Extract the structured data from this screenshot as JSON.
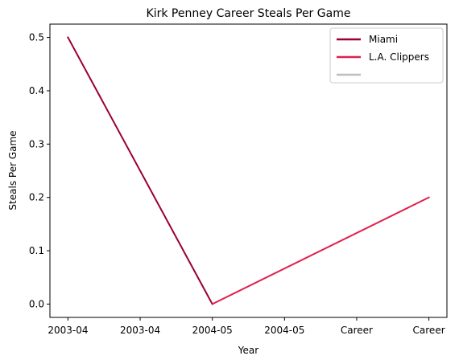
{
  "chart_data": {
    "type": "line",
    "title": "Kirk Penney Career Steals Per Game",
    "xlabel": "Year",
    "ylabel": "Steals Per Game",
    "categories": [
      "2003-04",
      "2003-04",
      "2004-05",
      "2004-05",
      "Career",
      "Career"
    ],
    "ylim": [
      -0.025,
      0.525
    ],
    "y_ticks": [
      "0.0",
      "0.1",
      "0.2",
      "0.3",
      "0.4",
      "0.5"
    ],
    "grid": false,
    "legend_position": "top-right",
    "series": [
      {
        "name": "Miami",
        "color": "#990033",
        "points": [
          [
            0,
            0.5
          ],
          [
            2,
            0.0
          ]
        ]
      },
      {
        "name": "L.A. Clippers",
        "color": "#E0204F",
        "points": [
          [
            2,
            0.0
          ],
          [
            5,
            0.2
          ]
        ]
      },
      {
        "name": "",
        "color": "#BEBEBE",
        "points": []
      }
    ]
  }
}
